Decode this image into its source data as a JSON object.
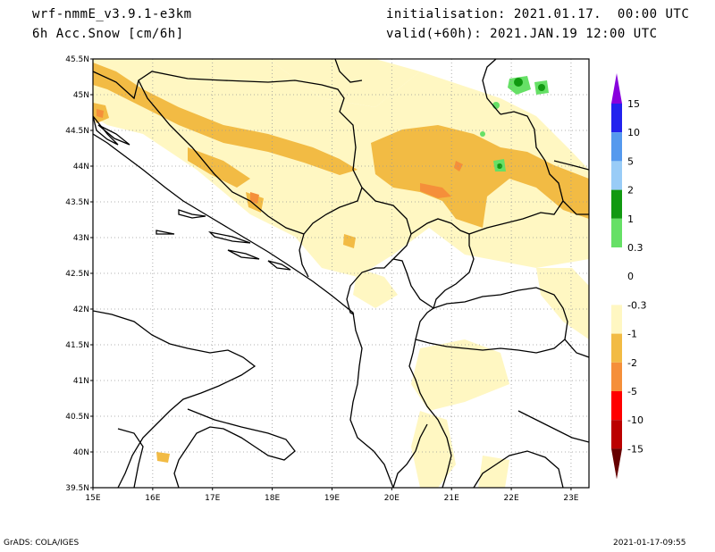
{
  "header": {
    "model": "wrf-nmmE_v3.9.1-e3km",
    "field": "6h Acc.Snow [cm/6h]",
    "init": "initialisation: 2021.01.17.  00:00 UTC",
    "valid": "valid(+60h): 2021.JAN.19 12:00 UTC"
  },
  "footer": {
    "credit": "GrADS: COLA/IGES",
    "timestamp": "2021-01-17-09:55"
  },
  "map": {
    "lat_labels": [
      "45.5N",
      "45N",
      "44.5N",
      "44N",
      "43.5N",
      "43N",
      "42.5N",
      "42N",
      "41.5N",
      "41N",
      "40.5N",
      "40N",
      "39.5N"
    ],
    "lon_labels": [
      "15E",
      "16E",
      "17E",
      "18E",
      "19E",
      "20E",
      "21E",
      "22E",
      "23E"
    ],
    "extent": {
      "lon": [
        15,
        23.3
      ],
      "lat": [
        39.5,
        45.5
      ]
    },
    "grid": "dotted"
  },
  "colorbar": {
    "labels": [
      "15",
      "10",
      "5",
      "2",
      "1",
      "0.3",
      "0",
      "-0.3",
      "-1",
      "-2",
      "-5",
      "-10",
      "-15"
    ],
    "colors": [
      "#2222ee",
      "#5599ee",
      "#99ccf7",
      "#119911",
      "#66e066",
      "#ffffff",
      "#ffffff",
      "#fff7c2",
      "#f2bb44",
      "#f58f3a",
      "#ff0000",
      "#bb0000",
      "#880000"
    ],
    "top_arrow_color": "#8800dd",
    "bottom_arrow_color": "#660000"
  },
  "colors": {
    "snow_light": "#fff7c2",
    "snow_mid": "#f2bb44",
    "snow_heavy": "#f58f3a",
    "green_light": "#66e066",
    "green_dark": "#119911"
  }
}
